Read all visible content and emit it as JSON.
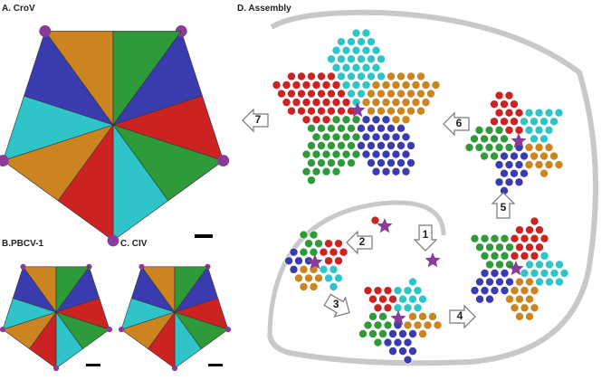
{
  "panels": {
    "a": {
      "label": "A. CroV"
    },
    "b": {
      "label": "B.PBCV-1"
    },
    "c": {
      "label": "C. CIV"
    },
    "d": {
      "label": "D. Assembly"
    }
  },
  "steps": [
    "1",
    "2",
    "3",
    "4",
    "5",
    "6",
    "7"
  ]
}
